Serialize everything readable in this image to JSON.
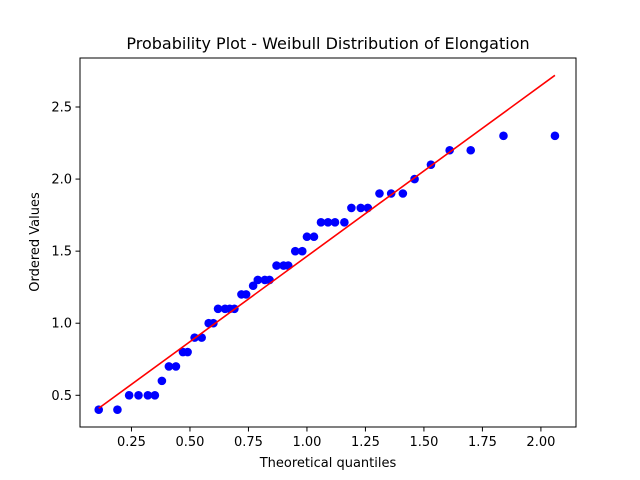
{
  "chart_data": {
    "type": "scatter",
    "title": "Probability Plot - Weibull Distribution of Elongation",
    "xlabel": "Theoretical quantiles",
    "ylabel": "Ordered Values",
    "xlim": [
      0.03,
      2.15
    ],
    "ylim": [
      0.28,
      2.84
    ],
    "xticks": [
      0.25,
      0.5,
      0.75,
      1.0,
      1.25,
      1.5,
      1.75,
      2.0
    ],
    "xtick_labels": [
      "0.25",
      "0.50",
      "0.75",
      "1.00",
      "1.25",
      "1.50",
      "1.75",
      "2.00"
    ],
    "yticks": [
      0.5,
      1.0,
      1.5,
      2.0,
      2.5
    ],
    "ytick_labels": [
      "0.5",
      "1.0",
      "1.5",
      "2.0",
      "2.5"
    ],
    "grid": false,
    "points_color": "#0000ff",
    "fit_line_color": "#ff0000",
    "points": [
      [
        0.11,
        0.4
      ],
      [
        0.19,
        0.4
      ],
      [
        0.24,
        0.5
      ],
      [
        0.28,
        0.5
      ],
      [
        0.32,
        0.5
      ],
      [
        0.35,
        0.5
      ],
      [
        0.38,
        0.6
      ],
      [
        0.41,
        0.7
      ],
      [
        0.44,
        0.7
      ],
      [
        0.47,
        0.8
      ],
      [
        0.49,
        0.8
      ],
      [
        0.52,
        0.9
      ],
      [
        0.55,
        0.9
      ],
      [
        0.58,
        1.0
      ],
      [
        0.6,
        1.0
      ],
      [
        0.62,
        1.1
      ],
      [
        0.65,
        1.1
      ],
      [
        0.67,
        1.1
      ],
      [
        0.69,
        1.1
      ],
      [
        0.72,
        1.2
      ],
      [
        0.74,
        1.2
      ],
      [
        0.77,
        1.26
      ],
      [
        0.79,
        1.3
      ],
      [
        0.82,
        1.3
      ],
      [
        0.84,
        1.3
      ],
      [
        0.87,
        1.4
      ],
      [
        0.9,
        1.4
      ],
      [
        0.92,
        1.4
      ],
      [
        0.95,
        1.5
      ],
      [
        0.98,
        1.5
      ],
      [
        1.0,
        1.6
      ],
      [
        1.03,
        1.6
      ],
      [
        1.06,
        1.7
      ],
      [
        1.09,
        1.7
      ],
      [
        1.12,
        1.7
      ],
      [
        1.16,
        1.7
      ],
      [
        1.19,
        1.8
      ],
      [
        1.23,
        1.8
      ],
      [
        1.26,
        1.8
      ],
      [
        1.31,
        1.9
      ],
      [
        1.36,
        1.9
      ],
      [
        1.41,
        1.9
      ],
      [
        1.46,
        2.0
      ],
      [
        1.53,
        2.1
      ],
      [
        1.61,
        2.2
      ],
      [
        1.7,
        2.2
      ],
      [
        1.84,
        2.3
      ],
      [
        2.06,
        2.3
      ]
    ],
    "fit_line": {
      "x": [
        0.11,
        2.06
      ],
      "y": [
        0.41,
        2.72
      ]
    }
  }
}
